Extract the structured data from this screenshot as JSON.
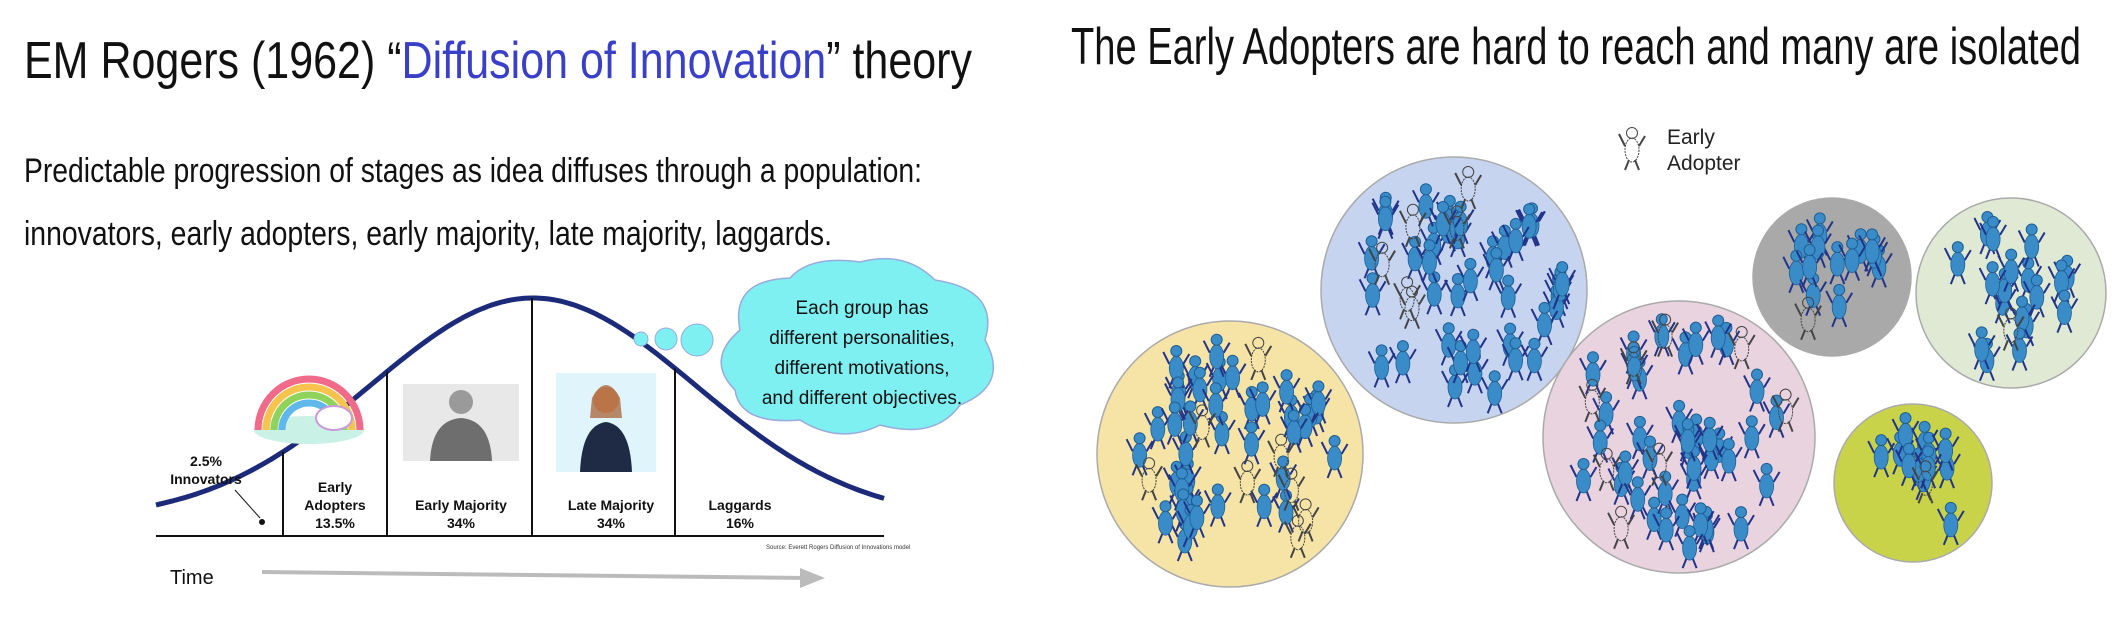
{
  "left": {
    "title_parts": [
      "EM Rogers (1962) “",
      "Diffusion of Innovation",
      "” theory"
    ],
    "body_lines": [
      "Predictable progression of stages as idea diffuses through a population:",
      "innovators, early adopters, early majority, late majority, laggards."
    ],
    "diagram": {
      "segments": [
        {
          "name_lines": [
            "Innovators"
          ],
          "share": "2.5%"
        },
        {
          "name_lines": [
            "Early",
            "Adopters"
          ],
          "share": "13.5%"
        },
        {
          "name_lines": [
            "Early Majority"
          ],
          "share": "34%"
        },
        {
          "name_lines": [
            "Late Majority"
          ],
          "share": "34%"
        },
        {
          "name_lines": [
            "Laggards"
          ],
          "share": "16%"
        }
      ],
      "source": "Source: Everett Rogers Diffusion of Innovations model",
      "time_label": "Time",
      "cloud_lines": [
        "Each group has",
        "different personalities,",
        "different motivations,",
        "and different objectives."
      ]
    }
  },
  "right": {
    "title": "The Early Adopters are hard to reach and many are isolated",
    "legend_lines": [
      "Early",
      "Adopter"
    ]
  }
}
